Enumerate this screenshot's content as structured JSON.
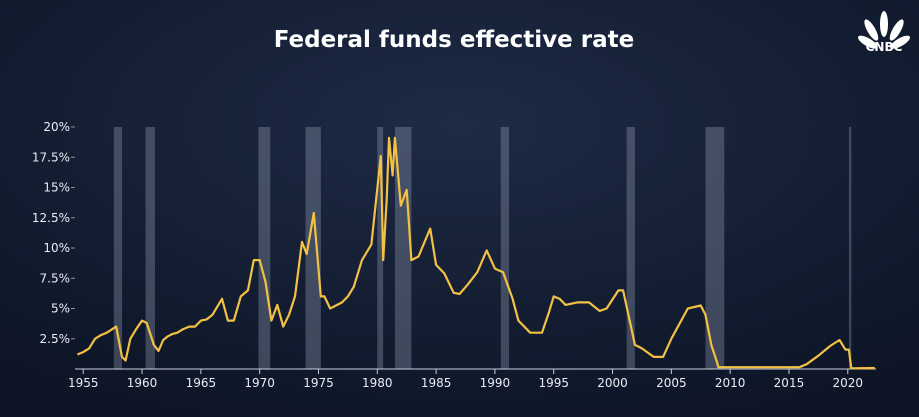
{
  "chart_data": {
    "type": "line",
    "title": "Federal funds effective rate",
    "logo": "CNBC",
    "color": "#f3c143",
    "x": [
      1954.5,
      1955.0,
      1955.5,
      1956.0,
      1956.5,
      1957.0,
      1957.8,
      1958.3,
      1958.6,
      1959.0,
      1959.5,
      1960.0,
      1960.4,
      1960.8,
      1961.0,
      1961.4,
      1961.8,
      1962.2,
      1962.6,
      1963.0,
      1963.5,
      1964.0,
      1964.5,
      1965.0,
      1965.5,
      1966.0,
      1966.8,
      1967.3,
      1967.8,
      1968.4,
      1969.0,
      1969.5,
      1970.0,
      1970.5,
      1971.0,
      1971.5,
      1972.0,
      1972.5,
      1973.0,
      1973.6,
      1974.0,
      1974.6,
      1975.2,
      1975.5,
      1976.0,
      1977.0,
      1977.5,
      1978.0,
      1978.7,
      1979.5,
      1979.9,
      1980.3,
      1980.5,
      1980.8,
      1981.0,
      1981.3,
      1981.5,
      1982.0,
      1982.5,
      1982.9,
      1983.5,
      1984.5,
      1985.0,
      1985.7,
      1986.5,
      1987.0,
      1987.7,
      1988.5,
      1989.3,
      1990.0,
      1990.7,
      1991.5,
      1992.0,
      1993.0,
      1994.0,
      1994.6,
      1995.0,
      1995.5,
      1996.0,
      1997.0,
      1998.0,
      1998.9,
      1999.5,
      2000.5,
      2000.9,
      2001.5,
      2001.9,
      2002.5,
      2003.5,
      2004.3,
      2005.0,
      2006.4,
      2007.5,
      2007.9,
      2008.4,
      2008.9,
      2009.0,
      2012.0,
      2015.9,
      2016.5,
      2017.5,
      2018.5,
      2019.3,
      2019.8,
      2020.1,
      2020.3,
      2022.3
    ],
    "values": [
      1.2,
      1.4,
      1.7,
      2.5,
      2.8,
      3.0,
      3.5,
      1.0,
      0.7,
      2.5,
      3.3,
      4.0,
      3.8,
      2.6,
      2.0,
      1.5,
      2.4,
      2.7,
      2.9,
      3.0,
      3.3,
      3.5,
      3.5,
      4.0,
      4.1,
      4.5,
      5.8,
      4.0,
      4.0,
      6.0,
      6.5,
      9.0,
      9.0,
      7.2,
      4.0,
      5.3,
      3.5,
      4.5,
      6.0,
      10.5,
      9.5,
      12.9,
      6.0,
      6.0,
      5.0,
      5.5,
      6.0,
      6.8,
      9.0,
      10.3,
      14.0,
      17.6,
      9.0,
      14.0,
      19.1,
      16.0,
      19.1,
      13.5,
      14.8,
      9.0,
      9.3,
      11.6,
      8.6,
      7.9,
      6.3,
      6.2,
      7.0,
      8.0,
      9.8,
      8.3,
      8.0,
      5.8,
      4.0,
      3.0,
      3.0,
      4.7,
      6.0,
      5.8,
      5.3,
      5.5,
      5.5,
      4.8,
      5.0,
      6.5,
      6.5,
      3.8,
      2.0,
      1.7,
      1.0,
      1.0,
      2.5,
      5.0,
      5.25,
      4.5,
      2.0,
      0.5,
      0.15,
      0.15,
      0.15,
      0.4,
      1.1,
      1.9,
      2.4,
      1.6,
      1.6,
      0.05,
      0.08
    ],
    "recessions": [
      [
        1957.6,
        1958.3
      ],
      [
        1960.3,
        1961.1
      ],
      [
        1969.9,
        1970.9
      ],
      [
        1973.9,
        1975.2
      ],
      [
        1980.0,
        1980.5
      ],
      [
        1981.5,
        1982.9
      ],
      [
        1990.5,
        1991.2
      ],
      [
        2001.2,
        2001.9
      ],
      [
        2007.9,
        2009.5
      ],
      [
        2020.1,
        2020.3
      ]
    ],
    "xlim": [
      1954.3,
      2022.4
    ],
    "xticks": [
      1955,
      1960,
      1965,
      1970,
      1975,
      1980,
      1985,
      1990,
      1995,
      2000,
      2005,
      2010,
      2015,
      2020
    ],
    "ylim": [
      0,
      20
    ],
    "yticks": [
      {
        "value": 2.5,
        "label": "2.5%"
      },
      {
        "value": 5,
        "label": "5%"
      },
      {
        "value": 7.5,
        "label": "7.5%"
      },
      {
        "value": 10,
        "label": "10%"
      },
      {
        "value": 12.5,
        "label": "12.5%"
      },
      {
        "value": 15,
        "label": "15%"
      },
      {
        "value": 17.5,
        "label": "17.5%"
      },
      {
        "value": 20,
        "label": "20%"
      }
    ]
  }
}
